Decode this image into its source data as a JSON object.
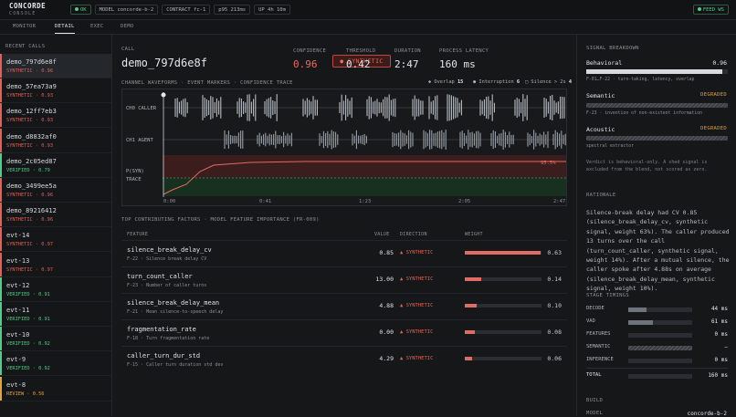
{
  "brand": {
    "title": "CONCORDE",
    "subtitle": "CONSOLE"
  },
  "status": {
    "ok": "OK",
    "model": "MODEL concorde-b-2",
    "contract": "CONTRACT fc-1",
    "p95": "p95 213ms",
    "uptime": "UP 4h 10m",
    "feed": "FEED WS"
  },
  "tabs": [
    "MONITOR",
    "DETAIL",
    "EXEC",
    "DEMO"
  ],
  "sidebar": {
    "header": "RECENT CALLS",
    "calls": [
      {
        "id": "demo_797d6e8f",
        "status": "SYNTHETIC · 0.96",
        "kind": "syn"
      },
      {
        "id": "demo_57ea73a9",
        "status": "SYNTHETIC · 0.93",
        "kind": "syn"
      },
      {
        "id": "demo_12ff7eb3",
        "status": "SYNTHETIC · 0.93",
        "kind": "syn"
      },
      {
        "id": "demo_d8832af0",
        "status": "SYNTHETIC · 0.93",
        "kind": "syn"
      },
      {
        "id": "demo_2c05ed87",
        "status": "VERIFIED · 0.79",
        "kind": "ver"
      },
      {
        "id": "demo_3499ee5a",
        "status": "SYNTHETIC · 0.96",
        "kind": "syn"
      },
      {
        "id": "demo_89216412",
        "status": "SYNTHETIC · 0.96",
        "kind": "syn"
      },
      {
        "id": "evt-14",
        "status": "SYNTHETIC · 0.97",
        "kind": "syn"
      },
      {
        "id": "evt-13",
        "status": "SYNTHETIC · 0.97",
        "kind": "syn"
      },
      {
        "id": "evt-12",
        "status": "VERIFIED · 0.91",
        "kind": "ver"
      },
      {
        "id": "evt-11",
        "status": "VERIFIED · 0.91",
        "kind": "ver"
      },
      {
        "id": "evt-10",
        "status": "VERIFIED · 0.92",
        "kind": "ver"
      },
      {
        "id": "evt-9",
        "status": "VERIFIED · 0.92",
        "kind": "ver"
      },
      {
        "id": "evt-8",
        "status": "REVIEW · 0.56",
        "kind": "rev"
      }
    ]
  },
  "call": {
    "label": "CALL",
    "id": "demo_797d6e8f",
    "verdict": "SYNTHETIC",
    "confidence_label": "CONFIDENCE",
    "confidence": "0.96",
    "threshold_label": "THRESHOLD",
    "threshold": "0.42",
    "duration_label": "DURATION",
    "duration": "2:47",
    "latency_label": "PROCESS LATENCY",
    "latency": "160 ms"
  },
  "waveform": {
    "title": "CHANNEL WAVEFORMS · EVENT MARKERS · CONFIDENCE TRACE",
    "legend": {
      "overlap": "Overlap",
      "overlap_n": "15",
      "interruption": "Interruption",
      "interruption_n": "6",
      "silence": "Silence > 2s",
      "silence_n": "4"
    },
    "ch0": "CH0 CALLER",
    "ch1": "CH1 AGENT",
    "psyn": "P(SYN)",
    "trace": "TRACE",
    "pct": "95.5%",
    "ticks": [
      "0:00",
      "0:41",
      "1:23",
      "2:05",
      "2:47"
    ],
    "colors": {
      "syn_zone": "#3a1d1c",
      "ver_zone": "#17301f",
      "trace": "#e06a64"
    }
  },
  "factors": {
    "title": "TOP CONTRIBUTING FACTORS · MODEL FEATURE IMPORTANCE (FR-009)",
    "headers": {
      "feature": "FEATURE",
      "value": "VALUE",
      "direction": "DIRECTION",
      "weight": "WEIGHT"
    },
    "rows": [
      {
        "name": "silence_break_delay_cv",
        "sub": "F-22 · Silence break delay CV",
        "value": "0.85",
        "dir": "▲ SYNTHETIC",
        "weight": "0.63",
        "w": 0.63
      },
      {
        "name": "turn_count_caller",
        "sub": "F-23 · Number of caller turns",
        "value": "13.00",
        "dir": "▲ SYNTHETIC",
        "weight": "0.14",
        "w": 0.14
      },
      {
        "name": "silence_break_delay_mean",
        "sub": "F-21 · Mean silence-to-speech delay",
        "value": "4.88",
        "dir": "▲ SYNTHETIC",
        "weight": "0.10",
        "w": 0.1
      },
      {
        "name": "fragmentation_rate",
        "sub": "F-18 · Turn fragmentation rate",
        "value": "0.00",
        "dir": "▲ SYNTHETIC",
        "weight": "0.08",
        "w": 0.08
      },
      {
        "name": "caller_turn_dur_std",
        "sub": "F-15 · Caller turn duration std dev",
        "value": "4.29",
        "dir": "▲ SYNTHETIC",
        "weight": "0.06",
        "w": 0.06
      }
    ]
  },
  "signal": {
    "header": "SIGNAL BREAKDOWN",
    "behavioral": {
      "name": "Behavioral",
      "value": "0.96",
      "sub": "F-01…F-22 · turn-taking, latency, overlap",
      "level": 0.96
    },
    "semantic": {
      "name": "Semantic",
      "state": "DEGRADED",
      "sub": "F-23 · invention of non-existent information"
    },
    "acoustic": {
      "name": "Acoustic",
      "state": "DEGRADED",
      "sub": "spectral extractor"
    },
    "note": "Verdict is behavioral-only. A shed signal is excluded from the blend, not scored as zero."
  },
  "rationale": {
    "header": "RATIONALE",
    "text": "Silence-break delay had CV 0.85 (silence_break_delay_cv, synthetic signal, weight 63%). The caller produced 13 turns over the call (turn_count_caller, synthetic signal, weight 14%). After a mutual silence, the caller spoke after 4.88s on average (silence_break_delay_mean, synthetic signal, weight 10%)."
  },
  "stages": {
    "header": "STAGE TIMINGS",
    "rows": [
      {
        "name": "DECODE",
        "value": "44 ms",
        "level": 0.28
      },
      {
        "name": "VAD",
        "value": "61 ms",
        "level": 0.38
      },
      {
        "name": "FEATURES",
        "value": "0 ms",
        "level": 0
      },
      {
        "name": "SEMANTIC",
        "value": "–",
        "level": -1
      },
      {
        "name": "INFERENCE",
        "value": "0 ms",
        "level": 0
      }
    ],
    "total_label": "TOTAL",
    "total": "160 ms"
  },
  "build": {
    "header": "BUILD",
    "model_label": "MODEL",
    "model": "concorde-b-2"
  }
}
